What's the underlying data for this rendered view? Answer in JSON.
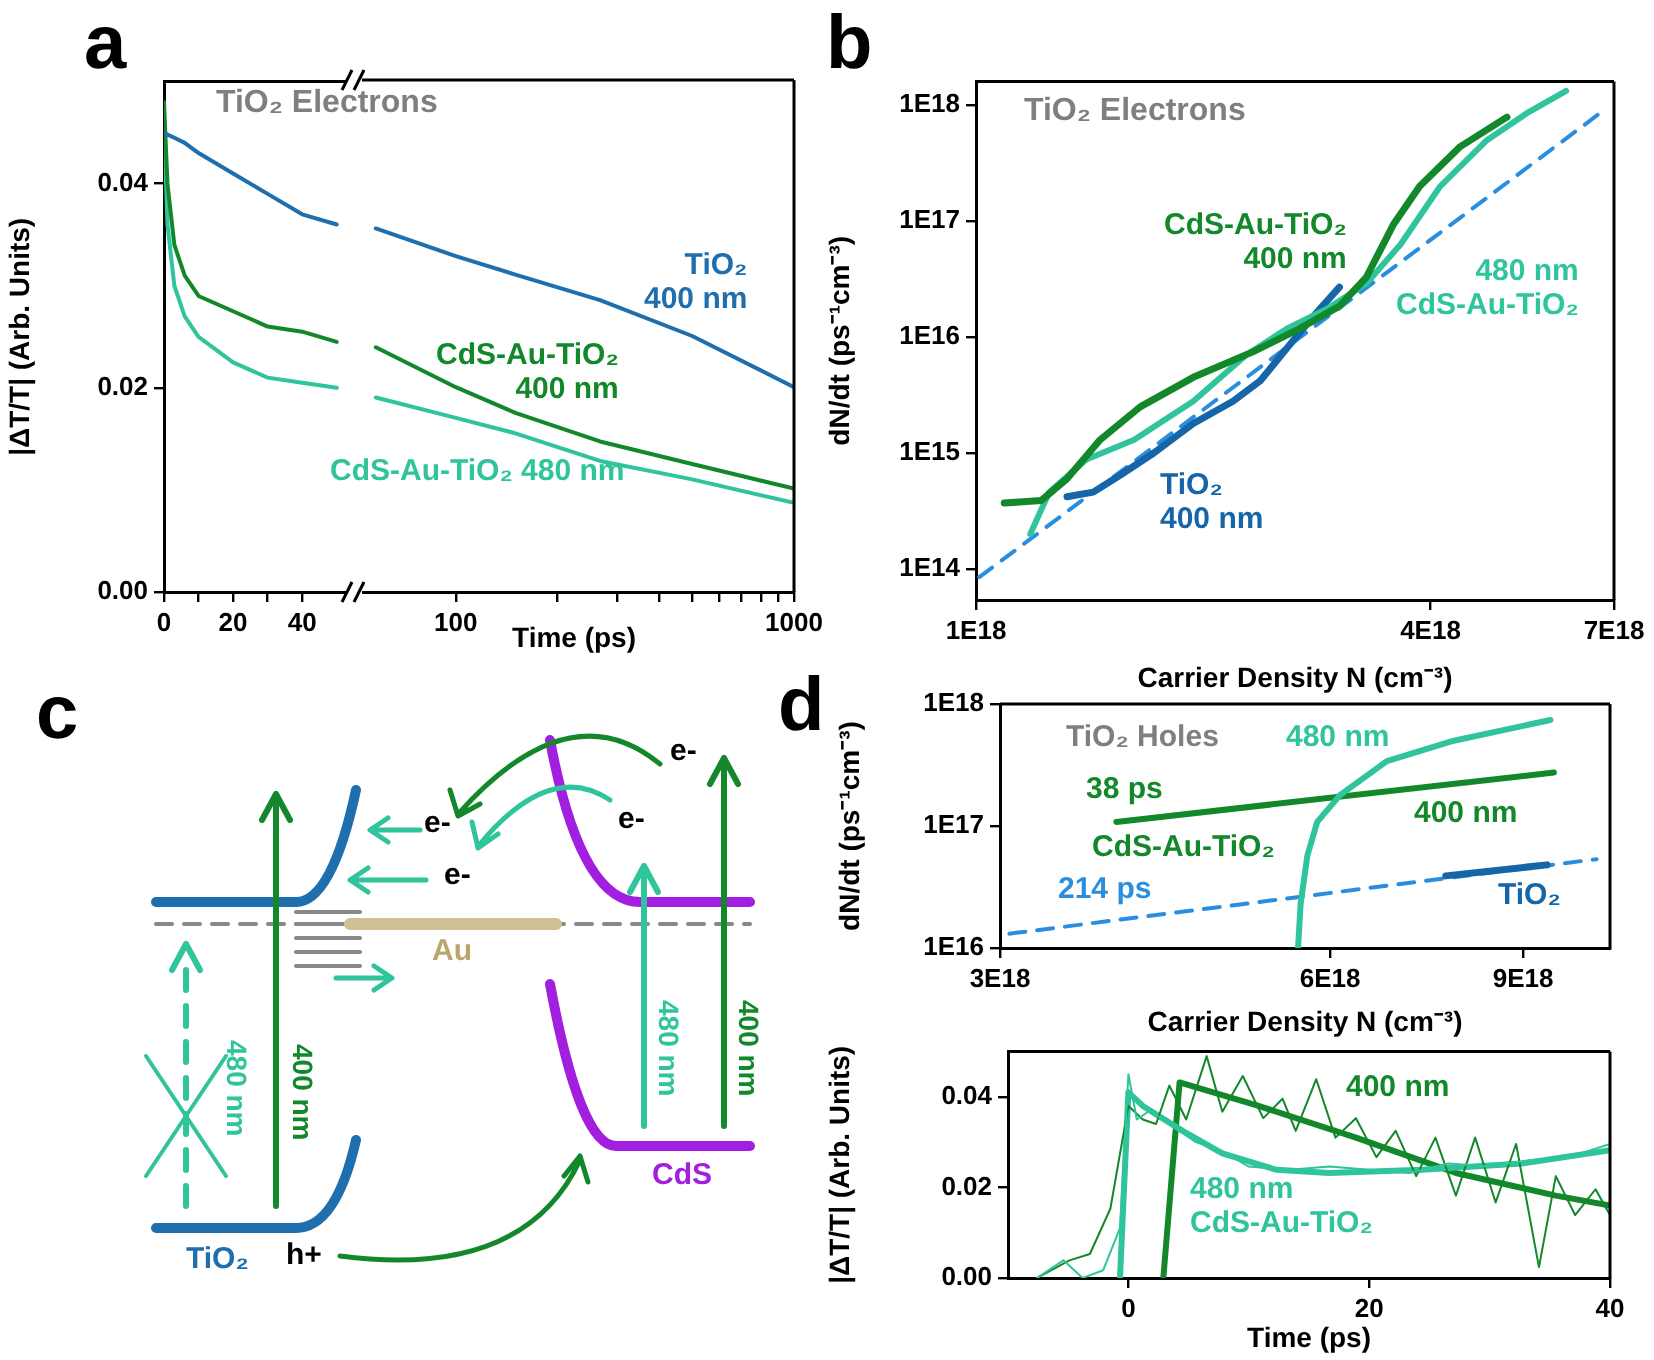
{
  "chart_data": [
    {
      "type": "line",
      "ylabel": "|ΔT/T| (Arb. Units)",
      "xlim": [
        0,
        55
      ],
      "ylim": [
        0,
        0.05
      ],
      "xticks": [
        0,
        {
          "value": 10,
          "label": null
        },
        20,
        {
          "value": 30,
          "label": null
        },
        40
      ],
      "yticks": [
        {
          "value": 0,
          "label": "0.00"
        },
        {
          "value": 0.02,
          "label": "0.02"
        },
        {
          "value": 0.04,
          "label": "0.04"
        }
      ],
      "annotations": [
        "a",
        "TiO₂ Electrons"
      ],
      "x": [
        0,
        1,
        3,
        6,
        10,
        20,
        30,
        40,
        50
      ],
      "series": [
        {
          "color": "#1f6fae",
          "values": [
            0.045,
            0.0448,
            0.0445,
            0.044,
            0.043,
            0.041,
            0.039,
            0.037,
            0.036
          ]
        },
        {
          "color": "#12882a",
          "values": [
            0.048,
            0.04,
            0.034,
            0.031,
            0.029,
            0.0275,
            0.026,
            0.0255,
            0.0245
          ]
        },
        {
          "color": "#2fc49c",
          "values": [
            0.046,
            0.036,
            0.03,
            0.027,
            0.025,
            0.0225,
            0.021,
            0.0205,
            0.02
          ]
        }
      ]
    },
    {
      "type": "line",
      "xlabel": "Time (ps)",
      "log": "x",
      "xlim": [
        50,
        1000
      ],
      "ylim": [
        0,
        0.05
      ],
      "xticks": [
        100,
        {
          "value": 200,
          "label": null
        },
        {
          "value": 300,
          "label": null
        },
        {
          "value": 400,
          "label": null
        },
        {
          "value": 500,
          "label": null
        },
        {
          "value": 600,
          "label": null
        },
        {
          "value": 700,
          "label": null
        },
        {
          "value": 800,
          "label": null
        },
        {
          "value": 900,
          "label": null
        },
        1000
      ],
      "tick_labels": "x",
      "x": [
        58,
        100,
        150,
        267,
        500,
        1000
      ],
      "series": [
        {
          "name": "TiO₂\n400 nm",
          "color": "#1f6fae",
          "values": [
            0.0355,
            0.0328,
            0.031,
            0.0285,
            0.025,
            0.02
          ]
        },
        {
          "name": "CdS-Au-TiO₂\n400 nm",
          "color": "#12882a",
          "values": [
            0.0239,
            0.02,
            0.0175,
            0.0147,
            0.0125,
            0.0101
          ]
        },
        {
          "name": "CdS-Au-TiO₂ 480 nm",
          "color": "#2fc49c",
          "values": [
            0.019,
            0.017,
            0.0155,
            0.0128,
            0.011,
            0.0087
          ]
        }
      ]
    },
    {
      "type": "line",
      "xlabel": "Carrier Density N (cm⁻³)",
      "ylabel": "dN/dt (ps⁻¹cm⁻³)",
      "log": "xy",
      "xlim": [
        1e+18,
        7e+18
      ],
      "ylim": [
        54000000000000.0,
        1.6e+18
      ],
      "xticks": [
        {
          "value": 1e+18,
          "label": "1E18"
        },
        {
          "value": 4e+18,
          "label": "4E18"
        },
        {
          "value": 7e+18,
          "label": "7E18"
        }
      ],
      "yticks": [
        {
          "value": 100000000000000.0,
          "label": "1E14"
        },
        {
          "value": 1000000000000000.0,
          "label": "1E15"
        },
        {
          "value": 1e+16,
          "label": "1E16"
        },
        {
          "value": 1e+17,
          "label": "1E17"
        },
        {
          "value": 1e+18,
          "label": "1E18"
        }
      ],
      "annotations": [
        "b",
        "TiO₂ Electrons"
      ],
      "series": [
        {
          "name": "CdS-Au-TiO₂\n400 nm",
          "color": "#12882a",
          "x": [
            1.09e+18,
            1.22e+18,
            1.32e+18,
            1.46e+18,
            1.65e+18,
            1.94e+18,
            2.33e+18,
            2.68e+18,
            3.03e+18,
            3.29e+18,
            3.57e+18,
            3.87e+18,
            4.38e+18,
            5.05e+18
          ],
          "values": [
            370000000000000.0,
            390000000000000.0,
            600000000000000.0,
            1300000000000000.0,
            2500000000000000.0,
            4500000000000000.0,
            7500000000000000.0,
            1.18e+16,
            1.85e+16,
            3.3e+16,
            9.3e+16,
            2e+17,
            4.4e+17,
            7.9e+17
          ]
        },
        {
          "name": "480 nm\nCdS-Au-TiO₂",
          "color": "#2fc49c",
          "x": [
            1.18e+18,
            1.25e+18,
            1.4e+18,
            1.62e+18,
            1.94e+18,
            2.28e+18,
            2.58e+18,
            2.91e+18,
            3.29e+18,
            3.65e+18,
            4.12e+18,
            4.75e+18,
            5.36e+18,
            6.05e+18
          ],
          "values": [
            200000000000000.0,
            460000000000000.0,
            880000000000000.0,
            1300000000000000.0,
            2800000000000000.0,
            7000000000000000.0,
            1.18e+16,
            1.74e+16,
            2.9e+16,
            6.3e+16,
            2e+17,
            5e+17,
            8.5e+17,
            1.33e+18
          ]
        },
        {
          "name": "TiO₂\n400 nm",
          "color": "#1565a8",
          "x": [
            1.32e+18,
            1.43e+18,
            1.55e+18,
            1.72e+18,
            1.94e+18,
            2.19e+18,
            2.38e+18,
            2.58e+18,
            2.8e+18,
            3.03e+18
          ],
          "values": [
            420000000000000.0,
            460000000000000.0,
            640000000000000.0,
            1000000000000000.0,
            1800000000000000.0,
            2800000000000000.0,
            4200000000000000.0,
            8000000000000000.0,
            1.52e+16,
            2.7e+16
          ]
        },
        {
          "color": "#2a8ee0",
          "line_style": "dashed",
          "x": [
            1.01e+18,
            6.7e+18
          ],
          "values": [
            85000000000000.0,
            8.5e+17
          ]
        }
      ]
    },
    {
      "type": "other",
      "annotations": [
        "c",
        "e-",
        "e-",
        "e-",
        "e-",
        "Au",
        "480 nm",
        "400 nm",
        "480 nm",
        "400 nm",
        "CdS",
        "TiO₂",
        "h+"
      ]
    },
    {
      "type": "line",
      "xlabel": "Carrier Density N (cm⁻³)",
      "ylabel": "dN/dt (ps⁻¹cm⁻³)",
      "log": "xy",
      "xlim": [
        3e+18,
        1.08e+19
      ],
      "ylim": [
        1e+16,
        1e+18
      ],
      "xticks": [
        {
          "value": 3e+18,
          "label": "3E18"
        },
        {
          "value": 6e+18,
          "label": "6E18"
        },
        {
          "value": 9e+18,
          "label": "9E18"
        }
      ],
      "yticks": [
        {
          "value": 1e+16,
          "label": "1E16"
        },
        {
          "value": 1e+17,
          "label": "1E17"
        },
        {
          "value": 1e+18,
          "label": "1E18"
        }
      ],
      "annotations": [
        "d",
        "TiO₂ Holes",
        "38 ps",
        "CdS-Au-TiO₂",
        "214 ps"
      ],
      "series": [
        {
          "name": "480 nm",
          "color": "#2fc49c",
          "x": [
            5.61e+18,
            5.64e+18,
            5.72e+18,
            5.84e+18,
            6.13e+18,
            6.76e+18,
            7.78e+18,
            9.53e+18
          ],
          "values": [
            1.01e+16,
            2.3e+16,
            5.7e+16,
            1.08e+17,
            1.8e+17,
            3.4e+17,
            5e+17,
            7.4e+17
          ]
        },
        {
          "name": "400 nm",
          "color": "#12882a",
          "x": [
            3.83e+18,
            9.6e+18
          ],
          "values": [
            1.08e+17,
            2.74e+17
          ]
        },
        {
          "name": "TiO₂",
          "color": "#1565a8",
          "x": [
            7.65e+18,
            9.46e+18
          ],
          "values": [
            3.9e+16,
            4.8e+16
          ]
        },
        {
          "color": "#2a8ee0",
          "line_style": "dashed",
          "x": [
            3.06e+18,
            1.05e+19
          ],
          "values": [
            1.31e+16,
            5.35e+16
          ]
        }
      ]
    },
    {
      "type": "line",
      "xlabel": "Time (ps)",
      "ylabel": "|ΔT/T| (Arb. Units)",
      "xlim": [
        -10,
        40
      ],
      "ylim": [
        0,
        0.05
      ],
      "xticks": [
        0,
        20,
        40
      ],
      "yticks": [
        {
          "value": 0,
          "label": "0.00"
        },
        {
          "value": 0.02,
          "label": "0.02"
        },
        {
          "value": 0.04,
          "label": "0.04"
        }
      ],
      "series": [
        {
          "color": "#2fc49c",
          "x": [
            -7.6,
            -5.4,
            -3.8,
            -2.1,
            -0.7,
            0,
            0.7,
            1.8,
            3.4,
            5.6,
            7.8,
            10,
            13.4,
            16.7,
            20,
            23.3,
            26.6,
            29.9,
            33.3,
            36.6,
            40
          ],
          "values": [
            0,
            0.0039,
            0,
            0.0017,
            0.011,
            0.045,
            0.035,
            0.037,
            0.034,
            0.03,
            0.028,
            0.0246,
            0.0239,
            0.0246,
            0.0239,
            0.0232,
            0.0253,
            0.0246,
            0.026,
            0.0267,
            0.0296
          ]
        },
        {
          "color": "#12882a",
          "x": [
            -7.6,
            -4.9,
            -3.2,
            -1.5,
            0,
            1.2,
            2.3,
            3.4,
            4.8,
            6.5,
            7.8,
            9.5,
            11.2,
            12.8,
            13.9,
            15.6,
            17.2,
            18.9,
            20.6,
            22.2,
            23.9,
            25.5,
            27.2,
            28.8,
            30.5,
            32.2,
            34.1,
            35.5,
            37.1,
            38.8,
            40
          ],
          "values": [
            0,
            0.0039,
            0.0053,
            0.0153,
            0.038,
            0.035,
            0.034,
            0.0425,
            0.035,
            0.049,
            0.0367,
            0.0446,
            0.0353,
            0.0396,
            0.0325,
            0.0439,
            0.031,
            0.0353,
            0.0267,
            0.0325,
            0.0225,
            0.031,
            0.0182,
            0.031,
            0.0167,
            0.0296,
            0.0024,
            0.0225,
            0.0139,
            0.0196,
            0.0139
          ]
        },
        {
          "name": "480 nm\nCdS-Au-TiO₂",
          "color": "#2fc49c",
          "x": [
            -0.7,
            0,
            1.2,
            4.5,
            7.8,
            12.3,
            16.7,
            24.4,
            32.7,
            40
          ],
          "values": [
            0,
            0.041,
            0.038,
            0.0325,
            0.0275,
            0.0239,
            0.0232,
            0.0239,
            0.0253,
            0.0282
          ]
        },
        {
          "name": "400 nm",
          "color": "#12882a",
          "x": [
            2.9,
            4.25,
            10.6,
            18.9,
            27.2,
            35.5,
            40
          ],
          "values": [
            0,
            0.0432,
            0.0382,
            0.031,
            0.0232,
            0.0182,
            0.016
          ]
        }
      ]
    }
  ]
}
